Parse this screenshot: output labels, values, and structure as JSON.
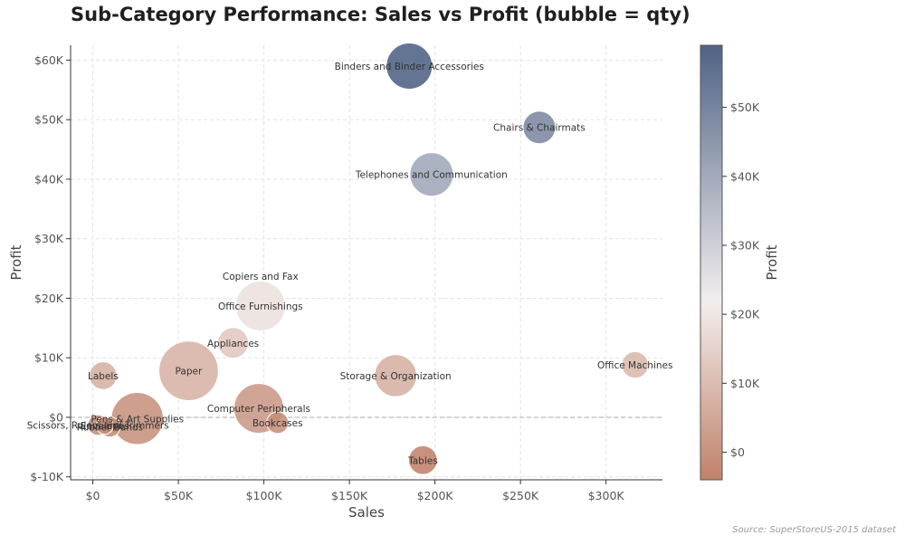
{
  "title": "Sub-Category Performance: Sales vs Profit (bubble = qty)",
  "source": "Source: SuperStoreUS-2015 dataset",
  "colors": {
    "low": "#c0826a",
    "mid": "#f2eeee",
    "high": "#4f6285",
    "grid": "#e3e3e3",
    "zero_line": "#aaaaaa",
    "label_text": "#333333",
    "axis_text": "#555555"
  },
  "chart_data": {
    "type": "scatter",
    "title": "Sub-Category Performance: Sales vs Profit (bubble = qty)",
    "xlabel": "Sales",
    "ylabel": "Profit",
    "colorbar_label": "Profit",
    "xlim": [
      -13000,
      333000
    ],
    "ylim": [
      -10500,
      62500
    ],
    "xticks": [
      0,
      50000,
      100000,
      150000,
      200000,
      250000,
      300000
    ],
    "xtick_labels": [
      "$0",
      "$50K",
      "$100K",
      "$150K",
      "$200K",
      "$250K",
      "$300K"
    ],
    "yticks": [
      -10000,
      0,
      10000,
      20000,
      30000,
      40000,
      50000,
      60000
    ],
    "ytick_labels": [
      "$-10K",
      "$0",
      "$10K",
      "$20K",
      "$30K",
      "$40K",
      "$50K",
      "$60K"
    ],
    "color_range": [
      -4000,
      59000
    ],
    "colorbar_ticks": [
      0,
      10000,
      20000,
      30000,
      40000,
      50000
    ],
    "colorbar_tick_labels": [
      "$0",
      "$10K",
      "$20K",
      "$30K",
      "$40K",
      "$50K"
    ],
    "grid": true,
    "zero_line": true,
    "size_encoding": "qty",
    "points": [
      {
        "name": "Binders and Binder Accessories",
        "x": 185000,
        "y": 59000,
        "qty": 1800
      },
      {
        "name": "Chairs & Chairmats",
        "x": 261000,
        "y": 48700,
        "qty": 900
      },
      {
        "name": "Telephones and Communication",
        "x": 198000,
        "y": 40800,
        "qty": 1600
      },
      {
        "name": "Copiers and Fax",
        "x": 98000,
        "y": 23700,
        "qty": 1
      },
      {
        "name": "Office Furnishings",
        "x": 98000,
        "y": 18700,
        "qty": 2100
      },
      {
        "name": "Appliances",
        "x": 82000,
        "y": 12500,
        "qty": 800
      },
      {
        "name": "Office Machines",
        "x": 317000,
        "y": 8800,
        "qty": 600
      },
      {
        "name": "Paper",
        "x": 56000,
        "y": 7800,
        "qty": 3000
      },
      {
        "name": "Labels",
        "x": 6000,
        "y": 7000,
        "qty": 650
      },
      {
        "name": "Storage & Organization",
        "x": 177000,
        "y": 7000,
        "qty": 1500
      },
      {
        "name": "Computer Peripherals",
        "x": 97000,
        "y": 1500,
        "qty": 2100
      },
      {
        "name": "Pens & Art Supplies",
        "x": 26000,
        "y": -200,
        "qty": 2300
      },
      {
        "name": "Bookcases",
        "x": 108000,
        "y": -900,
        "qty": 400
      },
      {
        "name": "Scissors, Rulers and Trimmers",
        "x": 3000,
        "y": -1300,
        "qty": 350
      },
      {
        "name": "Rubber Bands",
        "x": 10000,
        "y": -1600,
        "qty": 350
      },
      {
        "name": "Envelopes",
        "x": 7000,
        "y": -1400,
        "qty": 250
      },
      {
        "name": "Tables",
        "x": 193000,
        "y": -7200,
        "qty": 700
      }
    ]
  }
}
